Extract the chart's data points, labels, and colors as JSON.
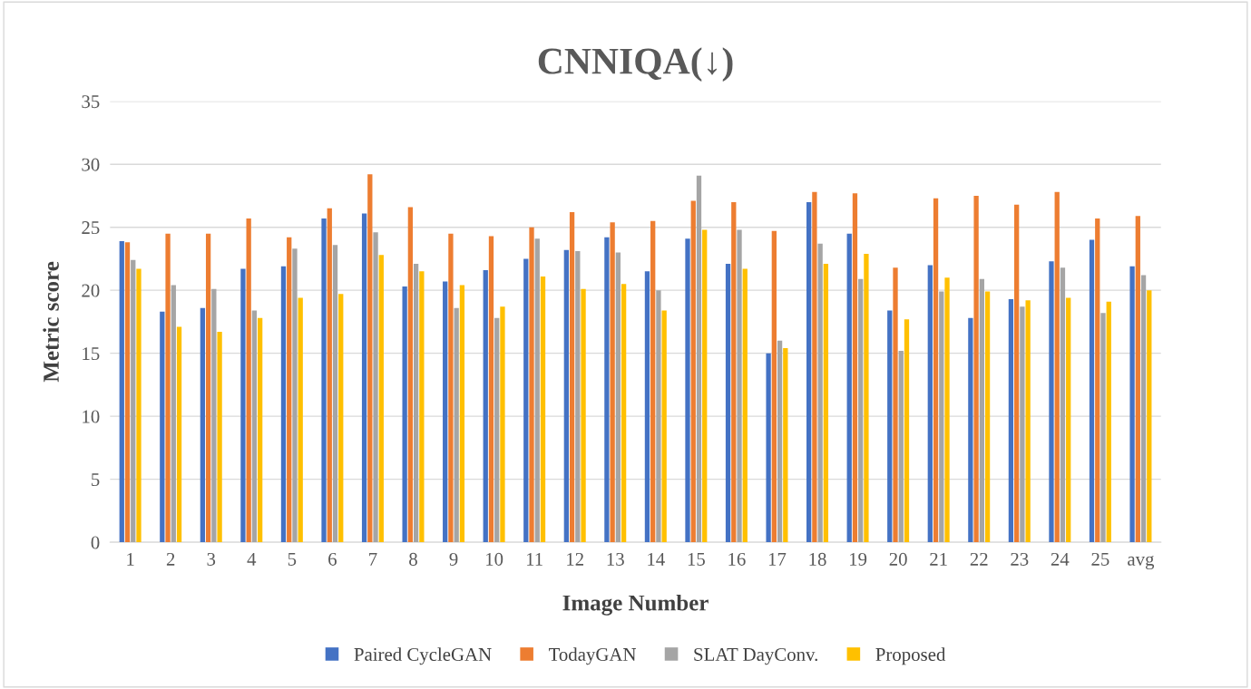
{
  "chart_data": {
    "type": "bar",
    "title": "CNNIQA(↓)",
    "xlabel": "Image Number",
    "ylabel": "Metric score",
    "categories": [
      "1",
      "2",
      "3",
      "4",
      "5",
      "6",
      "7",
      "8",
      "9",
      "10",
      "11",
      "12",
      "13",
      "14",
      "15",
      "16",
      "17",
      "18",
      "19",
      "20",
      "21",
      "22",
      "23",
      "24",
      "25",
      "avg"
    ],
    "series": [
      {
        "name": "Paired CycleGAN",
        "color": "#4472c4",
        "values": [
          23.9,
          18.3,
          18.6,
          21.7,
          21.9,
          25.7,
          26.1,
          20.3,
          20.7,
          21.6,
          22.5,
          23.2,
          24.2,
          21.5,
          24.1,
          22.1,
          15.0,
          27.0,
          24.5,
          18.4,
          22.0,
          17.8,
          19.3,
          22.3,
          24.0,
          21.9
        ]
      },
      {
        "name": "TodayGAN",
        "color": "#ed7d31",
        "values": [
          23.8,
          24.5,
          24.5,
          25.7,
          24.2,
          26.5,
          29.2,
          26.6,
          24.5,
          24.3,
          25.0,
          26.2,
          25.4,
          25.5,
          27.1,
          27.0,
          24.7,
          27.8,
          27.7,
          21.8,
          27.3,
          27.5,
          26.8,
          27.8,
          25.7,
          25.9
        ]
      },
      {
        "name": "SLAT DayConv.",
        "color": "#a5a5a5",
        "values": [
          22.4,
          20.4,
          20.1,
          18.4,
          23.3,
          23.6,
          24.6,
          22.1,
          18.6,
          17.8,
          24.1,
          23.1,
          23.0,
          20.0,
          29.1,
          24.8,
          16.0,
          23.7,
          20.9,
          15.2,
          19.9,
          20.9,
          18.7,
          21.8,
          18.2,
          21.2
        ]
      },
      {
        "name": "Proposed",
        "color": "#ffc000",
        "values": [
          21.7,
          17.1,
          16.7,
          17.8,
          19.4,
          19.7,
          22.8,
          21.5,
          20.4,
          18.7,
          21.1,
          20.1,
          20.5,
          18.4,
          24.8,
          21.7,
          15.4,
          22.1,
          22.9,
          17.7,
          21.0,
          19.9,
          19.2,
          19.4,
          19.1,
          20.0
        ]
      }
    ],
    "ylim": [
      0,
      35
    ],
    "yticks": [
      0,
      5,
      10,
      15,
      20,
      25,
      30,
      35
    ],
    "grid": "y",
    "legend": "bottom"
  }
}
